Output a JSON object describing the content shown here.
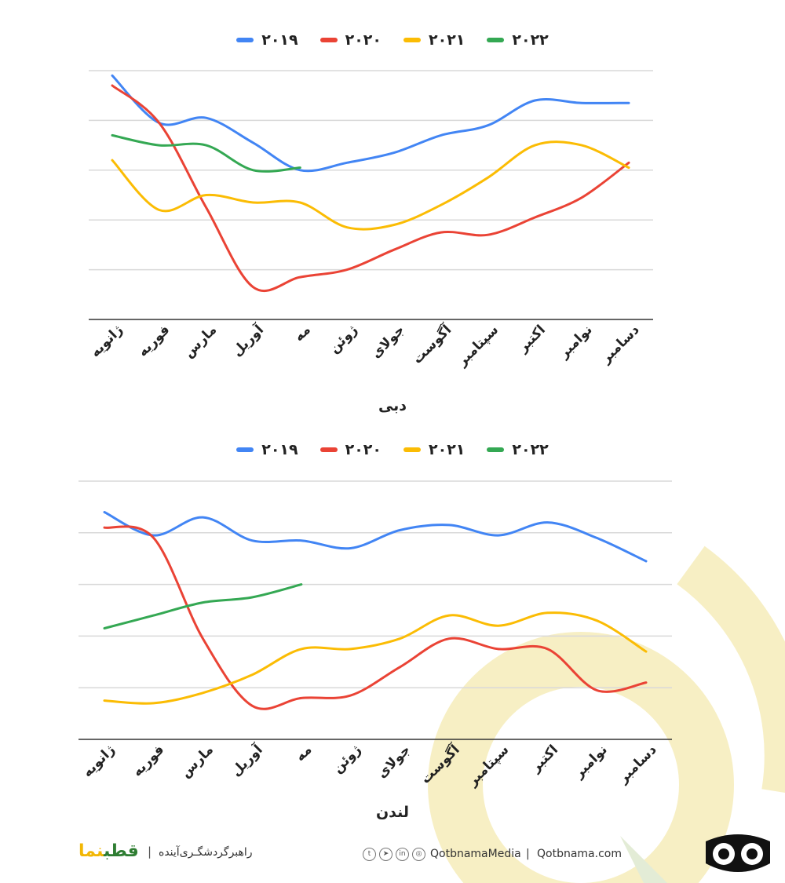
{
  "chart_data": [
    {
      "type": "line",
      "title": "دبی",
      "categories": [
        "ژانویه",
        "فوریه",
        "مارس",
        "آوریل",
        "مه",
        "ژوئن",
        "جولای",
        "آگوست",
        "سپتامبر",
        "اکتبر",
        "نوامبر",
        "دسامبر"
      ],
      "series": [
        {
          "name": "۲۰۱۹",
          "color": "#4285f4",
          "values": [
            4.9,
            3.95,
            4.05,
            3.55,
            3.0,
            3.15,
            3.35,
            3.7,
            3.9,
            4.4,
            4.35,
            4.35
          ]
        },
        {
          "name": "۲۰۲۰",
          "color": "#ea4335",
          "values": [
            4.7,
            3.95,
            2.25,
            0.65,
            0.85,
            1.0,
            1.4,
            1.75,
            1.7,
            2.05,
            2.45,
            3.15
          ]
        },
        {
          "name": "۲۰۲۱",
          "color": "#fbbc04",
          "values": [
            3.2,
            2.2,
            2.5,
            2.35,
            2.35,
            1.85,
            1.9,
            2.3,
            2.85,
            3.5,
            3.5,
            3.05
          ]
        },
        {
          "name": "۲۰۲۲",
          "color": "#34a853",
          "values": [
            3.7,
            3.5,
            3.5,
            3.0,
            3.05,
            null,
            null,
            null,
            null,
            null,
            null,
            null
          ]
        }
      ],
      "ylim": [
        0,
        5
      ],
      "grid": true,
      "legend": "top-center"
    },
    {
      "type": "line",
      "title": "لندن",
      "categories": [
        "ژانویه",
        "فوریه",
        "مارس",
        "آوریل",
        "مه",
        "ژوئن",
        "جولای",
        "آگوست",
        "سپتامبر",
        "اکتبر",
        "نوامبر",
        "دسامبر"
      ],
      "series": [
        {
          "name": "۲۰۱۹",
          "color": "#4285f4",
          "values": [
            4.4,
            3.95,
            4.3,
            3.85,
            3.85,
            3.7,
            4.05,
            4.15,
            3.95,
            4.2,
            3.9,
            3.45
          ]
        },
        {
          "name": "۲۰۲۰",
          "color": "#ea4335",
          "values": [
            4.1,
            3.9,
            1.95,
            0.65,
            0.8,
            0.85,
            1.4,
            1.95,
            1.75,
            1.75,
            0.95,
            1.1
          ]
        },
        {
          "name": "۲۰۲۱",
          "color": "#fbbc04",
          "values": [
            0.75,
            0.7,
            0.9,
            1.25,
            1.75,
            1.75,
            1.95,
            2.4,
            2.2,
            2.45,
            2.3,
            1.7
          ]
        },
        {
          "name": "۲۰۲۲",
          "color": "#34a853",
          "values": [
            2.15,
            2.4,
            2.65,
            2.75,
            3.0,
            null,
            null,
            null,
            null,
            null,
            null,
            null
          ]
        }
      ],
      "ylim": [
        0,
        5
      ],
      "grid": true,
      "legend": "top-center"
    }
  ],
  "footer": {
    "brand_main": "قطب",
    "brand_accent": "نما",
    "separator": "|",
    "tagline": "راهبرگردشگـری‌آینده",
    "socials": [
      {
        "icon": "twitter-icon",
        "glyph": "t"
      },
      {
        "icon": "telegram-icon",
        "glyph": "➤"
      },
      {
        "icon": "linkedin-icon",
        "glyph": "in"
      },
      {
        "icon": "instagram-icon",
        "glyph": "◎"
      }
    ],
    "social_handle": "QotbnamaMedia",
    "site_separator": "|",
    "website": "Qotbnama.com"
  },
  "colors": {
    "deco_yellow": "#f7efc4",
    "deco_green": "#e3ecd6",
    "grid": "#d9d9d9",
    "axis": "#333333"
  }
}
